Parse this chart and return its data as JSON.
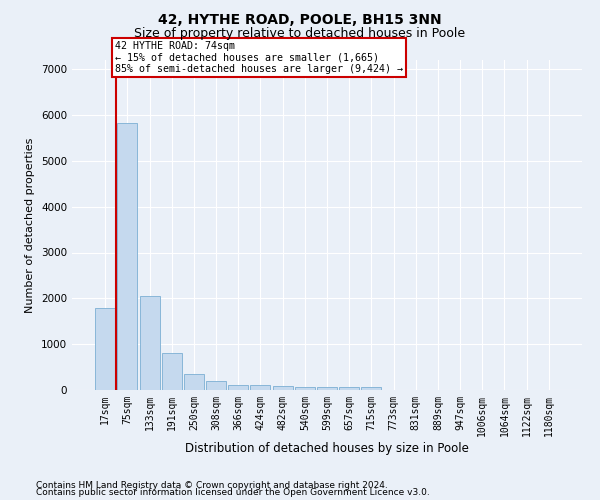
{
  "title": "42, HYTHE ROAD, POOLE, BH15 3NN",
  "subtitle": "Size of property relative to detached houses in Poole",
  "xlabel": "Distribution of detached houses by size in Poole",
  "ylabel": "Number of detached properties",
  "bin_labels": [
    "17sqm",
    "75sqm",
    "133sqm",
    "191sqm",
    "250sqm",
    "308sqm",
    "366sqm",
    "424sqm",
    "482sqm",
    "540sqm",
    "599sqm",
    "657sqm",
    "715sqm",
    "773sqm",
    "831sqm",
    "889sqm",
    "947sqm",
    "1006sqm",
    "1064sqm",
    "1122sqm",
    "1180sqm"
  ],
  "bar_values": [
    1800,
    5820,
    2050,
    800,
    340,
    190,
    120,
    110,
    90,
    70,
    65,
    60,
    65,
    0,
    0,
    0,
    0,
    0,
    0,
    0,
    0
  ],
  "highlight_index": 1,
  "bar_color": "#c5d9ee",
  "bar_edge_color": "#7bafd4",
  "red_line_color": "#cc0000",
  "annotation_text": "42 HYTHE ROAD: 74sqm\n← 15% of detached houses are smaller (1,665)\n85% of semi-detached houses are larger (9,424) →",
  "annotation_box_color": "#ffffff",
  "annotation_box_edge_color": "#cc0000",
  "ylim": [
    0,
    7200
  ],
  "yticks": [
    0,
    1000,
    2000,
    3000,
    4000,
    5000,
    6000,
    7000
  ],
  "footer_line1": "Contains HM Land Registry data © Crown copyright and database right 2024.",
  "footer_line2": "Contains public sector information licensed under the Open Government Licence v3.0.",
  "background_color": "#eaf0f8",
  "plot_bg_color": "#eaf0f8",
  "grid_color": "#ffffff",
  "title_fontsize": 10,
  "subtitle_fontsize": 9,
  "tick_fontsize": 7,
  "ylabel_fontsize": 8,
  "xlabel_fontsize": 8.5,
  "footer_fontsize": 6.5
}
